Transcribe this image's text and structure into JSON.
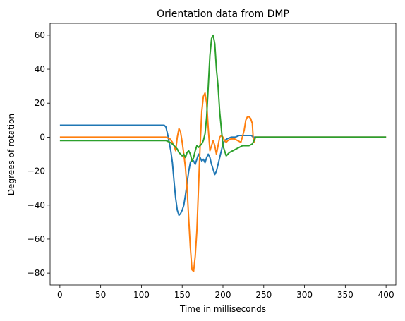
{
  "chart_data": {
    "type": "line",
    "title": "Orientation data from DMP",
    "xlabel": "Time in milliseconds",
    "ylabel": "Degrees of rotation",
    "xlim": [
      -12,
      412
    ],
    "ylim": [
      -87,
      67
    ],
    "xticks": [
      0,
      50,
      100,
      150,
      200,
      250,
      300,
      350,
      400
    ],
    "yticks": [
      -80,
      -60,
      -40,
      -20,
      0,
      20,
      40,
      60
    ],
    "grid": false,
    "legend": "none",
    "series": [
      {
        "color": "#1f77b4",
        "x": [
          0,
          20,
          40,
          60,
          80,
          100,
          120,
          128,
          130,
          132,
          134,
          136,
          138,
          140,
          142,
          144,
          146,
          148,
          150,
          152,
          154,
          156,
          158,
          160,
          162,
          164,
          166,
          168,
          170,
          172,
          174,
          176,
          178,
          180,
          182,
          184,
          186,
          188,
          190,
          192,
          194,
          196,
          198,
          200,
          202,
          205,
          210,
          215,
          220,
          225,
          230,
          235,
          237,
          240,
          260,
          300,
          350,
          400
        ],
        "y": [
          7,
          7,
          7,
          7,
          7,
          7,
          7,
          7,
          6,
          2,
          -3,
          -8,
          -15,
          -26,
          -36,
          -43,
          -46,
          -45,
          -43,
          -40,
          -34,
          -27,
          -20,
          -15,
          -13,
          -14,
          -16,
          -13,
          -10,
          -12,
          -14,
          -13,
          -15,
          -12,
          -10,
          -12,
          -16,
          -19,
          -22,
          -20,
          -16,
          -12,
          -8,
          -4,
          -2,
          -1,
          0,
          0,
          1,
          1,
          1,
          1,
          0,
          0,
          0,
          0,
          0,
          0
        ]
      },
      {
        "color": "#ff7f0e",
        "x": [
          0,
          20,
          40,
          60,
          80,
          100,
          120,
          130,
          135,
          138,
          140,
          142,
          144,
          146,
          148,
          150,
          152,
          154,
          156,
          158,
          160,
          162,
          164,
          166,
          168,
          170,
          172,
          174,
          176,
          178,
          180,
          182,
          184,
          186,
          188,
          190,
          192,
          194,
          196,
          198,
          200,
          202,
          204,
          206,
          210,
          214,
          218,
          222,
          226,
          228,
          230,
          232,
          234,
          236,
          237,
          238,
          240,
          260,
          300,
          350,
          400
        ],
        "y": [
          0,
          0,
          0,
          0,
          0,
          0,
          0,
          0,
          -1,
          -3,
          -5,
          -8,
          0,
          5,
          3,
          -3,
          -10,
          -18,
          -30,
          -48,
          -65,
          -78,
          -79,
          -70,
          -55,
          -30,
          -5,
          15,
          24,
          26,
          20,
          5,
          -8,
          -5,
          -2,
          -5,
          -10,
          -5,
          0,
          1,
          0,
          -2,
          -3,
          -2,
          -1,
          -1,
          -2,
          -3,
          4,
          10,
          12,
          12,
          11,
          8,
          0,
          -3,
          0,
          0,
          0,
          0,
          0
        ]
      },
      {
        "color": "#2ca02c",
        "x": [
          0,
          20,
          40,
          60,
          80,
          100,
          120,
          130,
          135,
          138,
          140,
          142,
          144,
          146,
          148,
          150,
          152,
          154,
          156,
          158,
          160,
          162,
          164,
          166,
          168,
          170,
          172,
          174,
          176,
          178,
          180,
          182,
          184,
          186,
          188,
          190,
          192,
          194,
          196,
          198,
          200,
          202,
          204,
          206,
          208,
          212,
          216,
          220,
          224,
          228,
          232,
          236,
          240,
          260,
          300,
          350,
          400
        ],
        "y": [
          -2,
          -2,
          -2,
          -2,
          -2,
          -2,
          -2,
          -2,
          -3,
          -4,
          -5,
          -6,
          -7,
          -9,
          -10,
          -11,
          -10,
          -12,
          -9,
          -8,
          -10,
          -14,
          -12,
          -8,
          -5,
          -6,
          -5,
          -4,
          -2,
          2,
          12,
          30,
          48,
          58,
          60,
          55,
          40,
          30,
          15,
          5,
          -5,
          -8,
          -11,
          -10,
          -9,
          -8,
          -7,
          -6,
          -5,
          -5,
          -5,
          -4,
          0,
          0,
          0,
          0,
          0
        ]
      }
    ]
  }
}
